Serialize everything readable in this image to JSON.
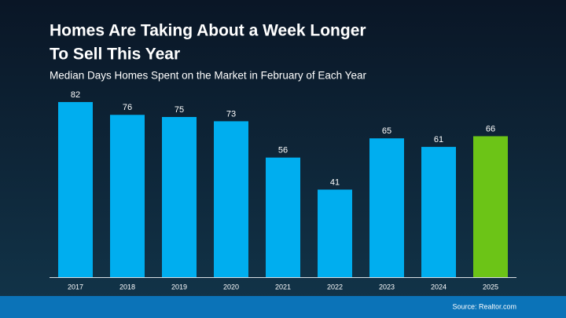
{
  "chart_data": {
    "type": "bar",
    "title": [
      "Homes Are Taking About a Week Longer",
      "To Sell This Year"
    ],
    "subtitle": "Median Days Homes Spent on the Market in February of Each Year",
    "categories": [
      "2017",
      "2018",
      "2019",
      "2020",
      "2021",
      "2022",
      "2023",
      "2024",
      "2025"
    ],
    "values": [
      82,
      76,
      75,
      73,
      56,
      41,
      65,
      61,
      66
    ],
    "colors": [
      "#00aeef",
      "#00aeef",
      "#00aeef",
      "#00aeef",
      "#00aeef",
      "#00aeef",
      "#00aeef",
      "#00aeef",
      "#6cc417"
    ],
    "source": "Source: Realtor.com"
  }
}
